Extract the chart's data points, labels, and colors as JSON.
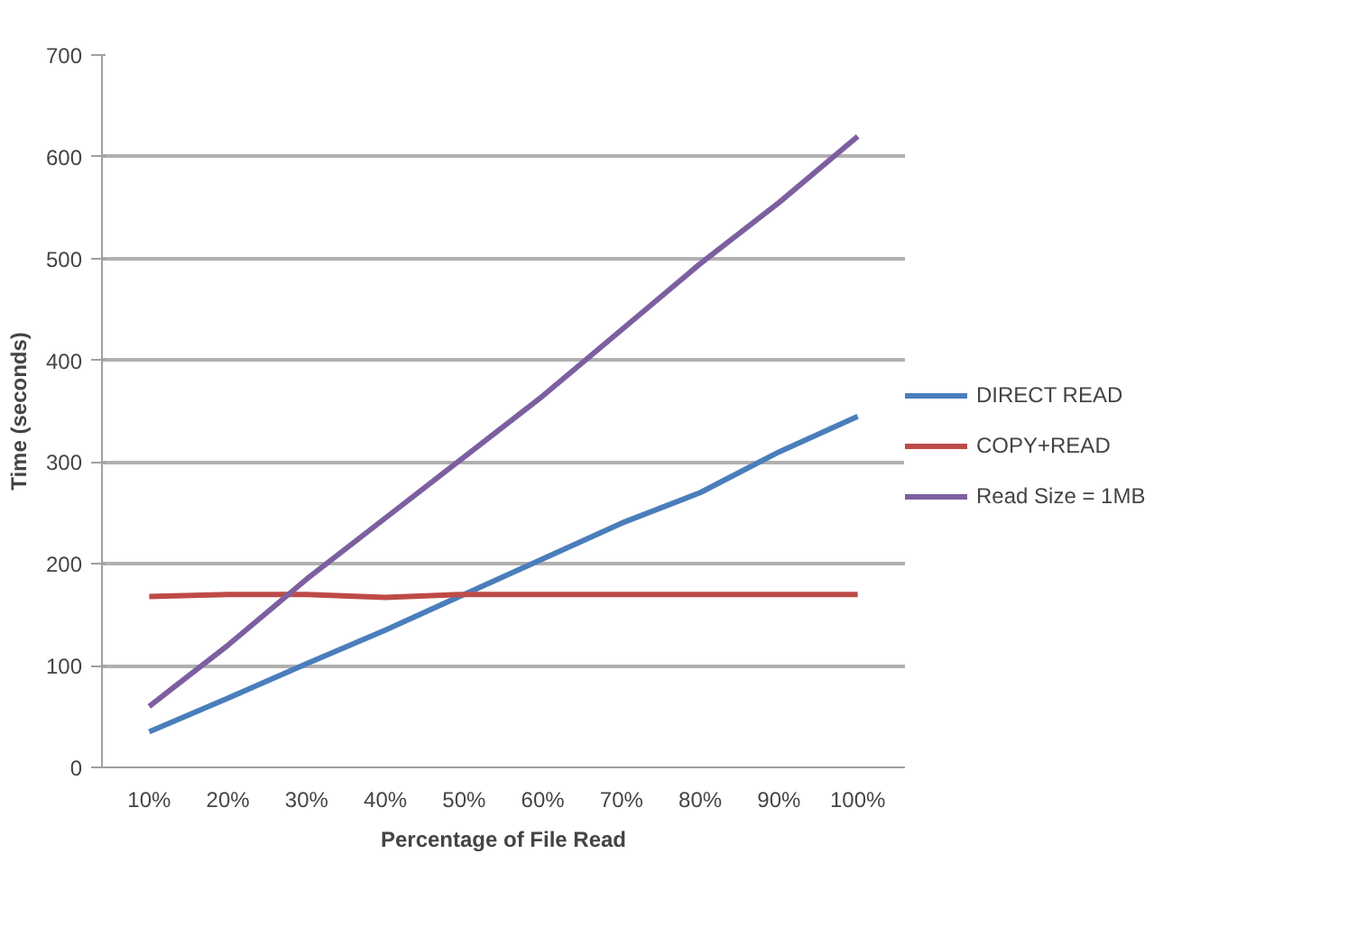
{
  "chart_data": {
    "type": "line",
    "xlabel": "Percentage of File Read",
    "ylabel": "Time (seconds)",
    "categories": [
      "10%",
      "20%",
      "30%",
      "40%",
      "50%",
      "60%",
      "70%",
      "80%",
      "90%",
      "100%"
    ],
    "series": [
      {
        "name": "DIRECT READ",
        "color": "#4a7ebb",
        "values": [
          35,
          68,
          102,
          135,
          170,
          205,
          240,
          270,
          310,
          345
        ]
      },
      {
        "name": "COPY+READ",
        "color": "#be4b48",
        "values": [
          168,
          170,
          170,
          167,
          170,
          170,
          170,
          170,
          170,
          170
        ]
      },
      {
        "name": "Read Size = 1MB",
        "color": "#7d5fa0",
        "values": [
          60,
          120,
          185,
          245,
          305,
          365,
          430,
          495,
          555,
          620
        ]
      }
    ],
    "ylim": [
      0,
      700
    ],
    "yticks": [
      0,
      100,
      200,
      300,
      400,
      500,
      600,
      700
    ],
    "grid": "y",
    "legend": "right",
    "marker": "none",
    "line_style": "solid"
  }
}
